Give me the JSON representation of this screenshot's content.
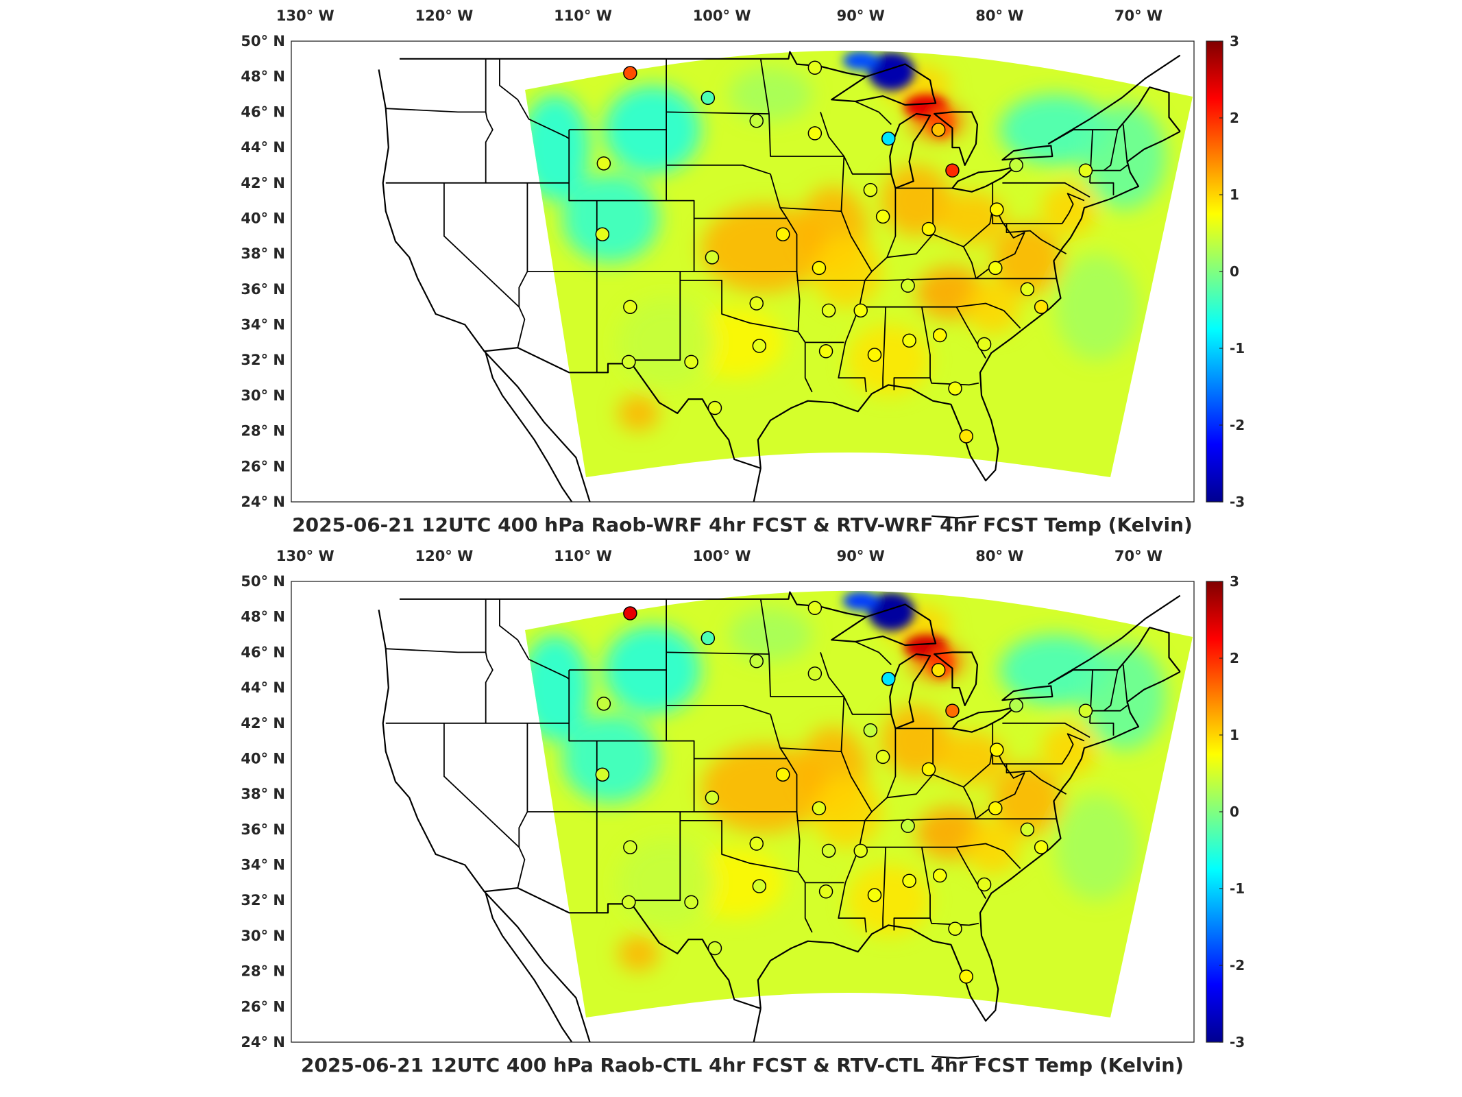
{
  "panels": [
    {
      "title": "2025-06-21 12UTC 400 hPa Raob-WRF 4hr FCST & RTV-WRF 4hr FCST Temp (Kelvin)",
      "lake_anomaly": -2.8,
      "michigan_anomaly": 2.4,
      "stations": [
        {
          "lon": -106.6,
          "lat": 48.2,
          "value": 1.8
        },
        {
          "lon": -101.0,
          "lat": 46.8,
          "value": -0.3
        },
        {
          "lon": -97.5,
          "lat": 45.5,
          "value": 0.4
        },
        {
          "lon": -93.3,
          "lat": 48.5,
          "value": 0.6
        },
        {
          "lon": -93.3,
          "lat": 44.8,
          "value": 0.7
        },
        {
          "lon": -88.0,
          "lat": 44.5,
          "value": -0.9
        },
        {
          "lon": -84.4,
          "lat": 45.0,
          "value": 1.1
        },
        {
          "lon": -83.4,
          "lat": 42.7,
          "value": 2.0
        },
        {
          "lon": -108.5,
          "lat": 43.1,
          "value": 0.6
        },
        {
          "lon": -108.6,
          "lat": 39.1,
          "value": 0.6
        },
        {
          "lon": -100.7,
          "lat": 37.8,
          "value": 0.5
        },
        {
          "lon": -95.6,
          "lat": 39.1,
          "value": 0.8
        },
        {
          "lon": -93.0,
          "lat": 37.2,
          "value": 0.8
        },
        {
          "lon": -89.3,
          "lat": 41.6,
          "value": 0.6
        },
        {
          "lon": -88.4,
          "lat": 40.1,
          "value": 0.7
        },
        {
          "lon": -85.1,
          "lat": 39.4,
          "value": 0.8
        },
        {
          "lon": -80.2,
          "lat": 40.5,
          "value": 0.8
        },
        {
          "lon": -78.8,
          "lat": 43.0,
          "value": 0.4
        },
        {
          "lon": -73.8,
          "lat": 42.7,
          "value": 0.6
        },
        {
          "lon": -80.3,
          "lat": 37.2,
          "value": 0.7
        },
        {
          "lon": -86.6,
          "lat": 36.2,
          "value": 0.5
        },
        {
          "lon": -90.0,
          "lat": 34.8,
          "value": 0.7
        },
        {
          "lon": -92.3,
          "lat": 34.8,
          "value": 0.6
        },
        {
          "lon": -97.5,
          "lat": 35.2,
          "value": 0.6
        },
        {
          "lon": -106.6,
          "lat": 35.0,
          "value": 0.6
        },
        {
          "lon": -106.7,
          "lat": 31.9,
          "value": 0.5
        },
        {
          "lon": -102.2,
          "lat": 31.9,
          "value": 0.6
        },
        {
          "lon": -97.3,
          "lat": 32.8,
          "value": 0.6
        },
        {
          "lon": -92.5,
          "lat": 32.5,
          "value": 0.7
        },
        {
          "lon": -89.0,
          "lat": 32.3,
          "value": 0.8
        },
        {
          "lon": -86.5,
          "lat": 33.1,
          "value": 0.7
        },
        {
          "lon": -84.3,
          "lat": 33.4,
          "value": 0.8
        },
        {
          "lon": -81.1,
          "lat": 32.9,
          "value": 0.6
        },
        {
          "lon": -77.0,
          "lat": 35.0,
          "value": 0.9
        },
        {
          "lon": -78.0,
          "lat": 36.0,
          "value": 0.6
        },
        {
          "lon": -83.2,
          "lat": 30.4,
          "value": 0.7
        },
        {
          "lon": -82.4,
          "lat": 27.7,
          "value": 0.9
        },
        {
          "lon": -100.5,
          "lat": 29.3,
          "value": 0.6
        }
      ]
    },
    {
      "title": "2025-06-21 12UTC 400 hPa Raob-CTL 4hr FCST & RTV-CTL 4hr FCST Temp (Kelvin)",
      "lake_anomaly": -2.9,
      "michigan_anomaly": 2.5,
      "stations": [
        {
          "lon": -106.6,
          "lat": 48.2,
          "value": 2.4
        },
        {
          "lon": -101.0,
          "lat": 46.8,
          "value": -0.3
        },
        {
          "lon": -97.5,
          "lat": 45.5,
          "value": 0.4
        },
        {
          "lon": -93.3,
          "lat": 48.5,
          "value": 0.6
        },
        {
          "lon": -93.3,
          "lat": 44.8,
          "value": 0.5
        },
        {
          "lon": -88.0,
          "lat": 44.5,
          "value": -0.9
        },
        {
          "lon": -84.4,
          "lat": 45.0,
          "value": 0.9
        },
        {
          "lon": -83.4,
          "lat": 42.7,
          "value": 1.6
        },
        {
          "lon": -108.5,
          "lat": 43.1,
          "value": 0.4
        },
        {
          "lon": -108.6,
          "lat": 39.1,
          "value": 0.5
        },
        {
          "lon": -100.7,
          "lat": 37.8,
          "value": 0.5
        },
        {
          "lon": -95.6,
          "lat": 39.1,
          "value": 0.8
        },
        {
          "lon": -93.0,
          "lat": 37.2,
          "value": 0.6
        },
        {
          "lon": -89.3,
          "lat": 41.6,
          "value": 0.4
        },
        {
          "lon": -88.4,
          "lat": 40.1,
          "value": 0.6
        },
        {
          "lon": -85.1,
          "lat": 39.4,
          "value": 0.8
        },
        {
          "lon": -80.2,
          "lat": 40.5,
          "value": 0.8
        },
        {
          "lon": -78.8,
          "lat": 43.0,
          "value": 0.3
        },
        {
          "lon": -73.8,
          "lat": 42.7,
          "value": 0.5
        },
        {
          "lon": -80.3,
          "lat": 37.2,
          "value": 0.8
        },
        {
          "lon": -86.6,
          "lat": 36.2,
          "value": 0.4
        },
        {
          "lon": -90.0,
          "lat": 34.8,
          "value": 0.6
        },
        {
          "lon": -92.3,
          "lat": 34.8,
          "value": 0.5
        },
        {
          "lon": -97.5,
          "lat": 35.2,
          "value": 0.6
        },
        {
          "lon": -106.6,
          "lat": 35.0,
          "value": 0.5
        },
        {
          "lon": -106.7,
          "lat": 31.9,
          "value": 0.5
        },
        {
          "lon": -102.2,
          "lat": 31.9,
          "value": 0.5
        },
        {
          "lon": -97.3,
          "lat": 32.8,
          "value": 0.5
        },
        {
          "lon": -92.5,
          "lat": 32.5,
          "value": 0.6
        },
        {
          "lon": -89.0,
          "lat": 32.3,
          "value": 0.7
        },
        {
          "lon": -86.5,
          "lat": 33.1,
          "value": 0.7
        },
        {
          "lon": -84.3,
          "lat": 33.4,
          "value": 0.7
        },
        {
          "lon": -81.1,
          "lat": 32.9,
          "value": 0.6
        },
        {
          "lon": -77.0,
          "lat": 35.0,
          "value": 0.7
        },
        {
          "lon": -78.0,
          "lat": 36.0,
          "value": 0.5
        },
        {
          "lon": -83.2,
          "lat": 30.4,
          "value": 0.6
        },
        {
          "lon": -82.4,
          "lat": 27.7,
          "value": 0.8
        },
        {
          "lon": -100.5,
          "lat": 29.3,
          "value": 0.5
        }
      ]
    }
  ],
  "lon_ticks": [
    {
      "value": -130,
      "label": "130° W"
    },
    {
      "value": -120,
      "label": "120° W"
    },
    {
      "value": -110,
      "label": "110° W"
    },
    {
      "value": -100,
      "label": "100° W"
    },
    {
      "value": -90,
      "label": "90° W"
    },
    {
      "value": -80,
      "label": "80° W"
    },
    {
      "value": -70,
      "label": "70° W"
    }
  ],
  "lat_ticks": [
    {
      "value": 50,
      "label": "50° N"
    },
    {
      "value": 48,
      "label": "48° N"
    },
    {
      "value": 46,
      "label": "46° N"
    },
    {
      "value": 44,
      "label": "44° N"
    },
    {
      "value": 42,
      "label": "42° N"
    },
    {
      "value": 40,
      "label": "40° N"
    },
    {
      "value": 38,
      "label": "38° N"
    },
    {
      "value": 36,
      "label": "36° N"
    },
    {
      "value": 34,
      "label": "34° N"
    },
    {
      "value": 32,
      "label": "32° N"
    },
    {
      "value": 30,
      "label": "30° N"
    },
    {
      "value": 28,
      "label": "28° N"
    },
    {
      "value": 26,
      "label": "26° N"
    },
    {
      "value": 24,
      "label": "24° N"
    }
  ],
  "colorbar": {
    "min": -3,
    "max": 3,
    "ticks": [
      "3",
      "2",
      "1",
      "0",
      "-1",
      "-2",
      "-3"
    ],
    "colormap": "jet"
  },
  "map_extent": {
    "lon": [
      -131,
      -66
    ],
    "lat": [
      24,
      50
    ]
  }
}
